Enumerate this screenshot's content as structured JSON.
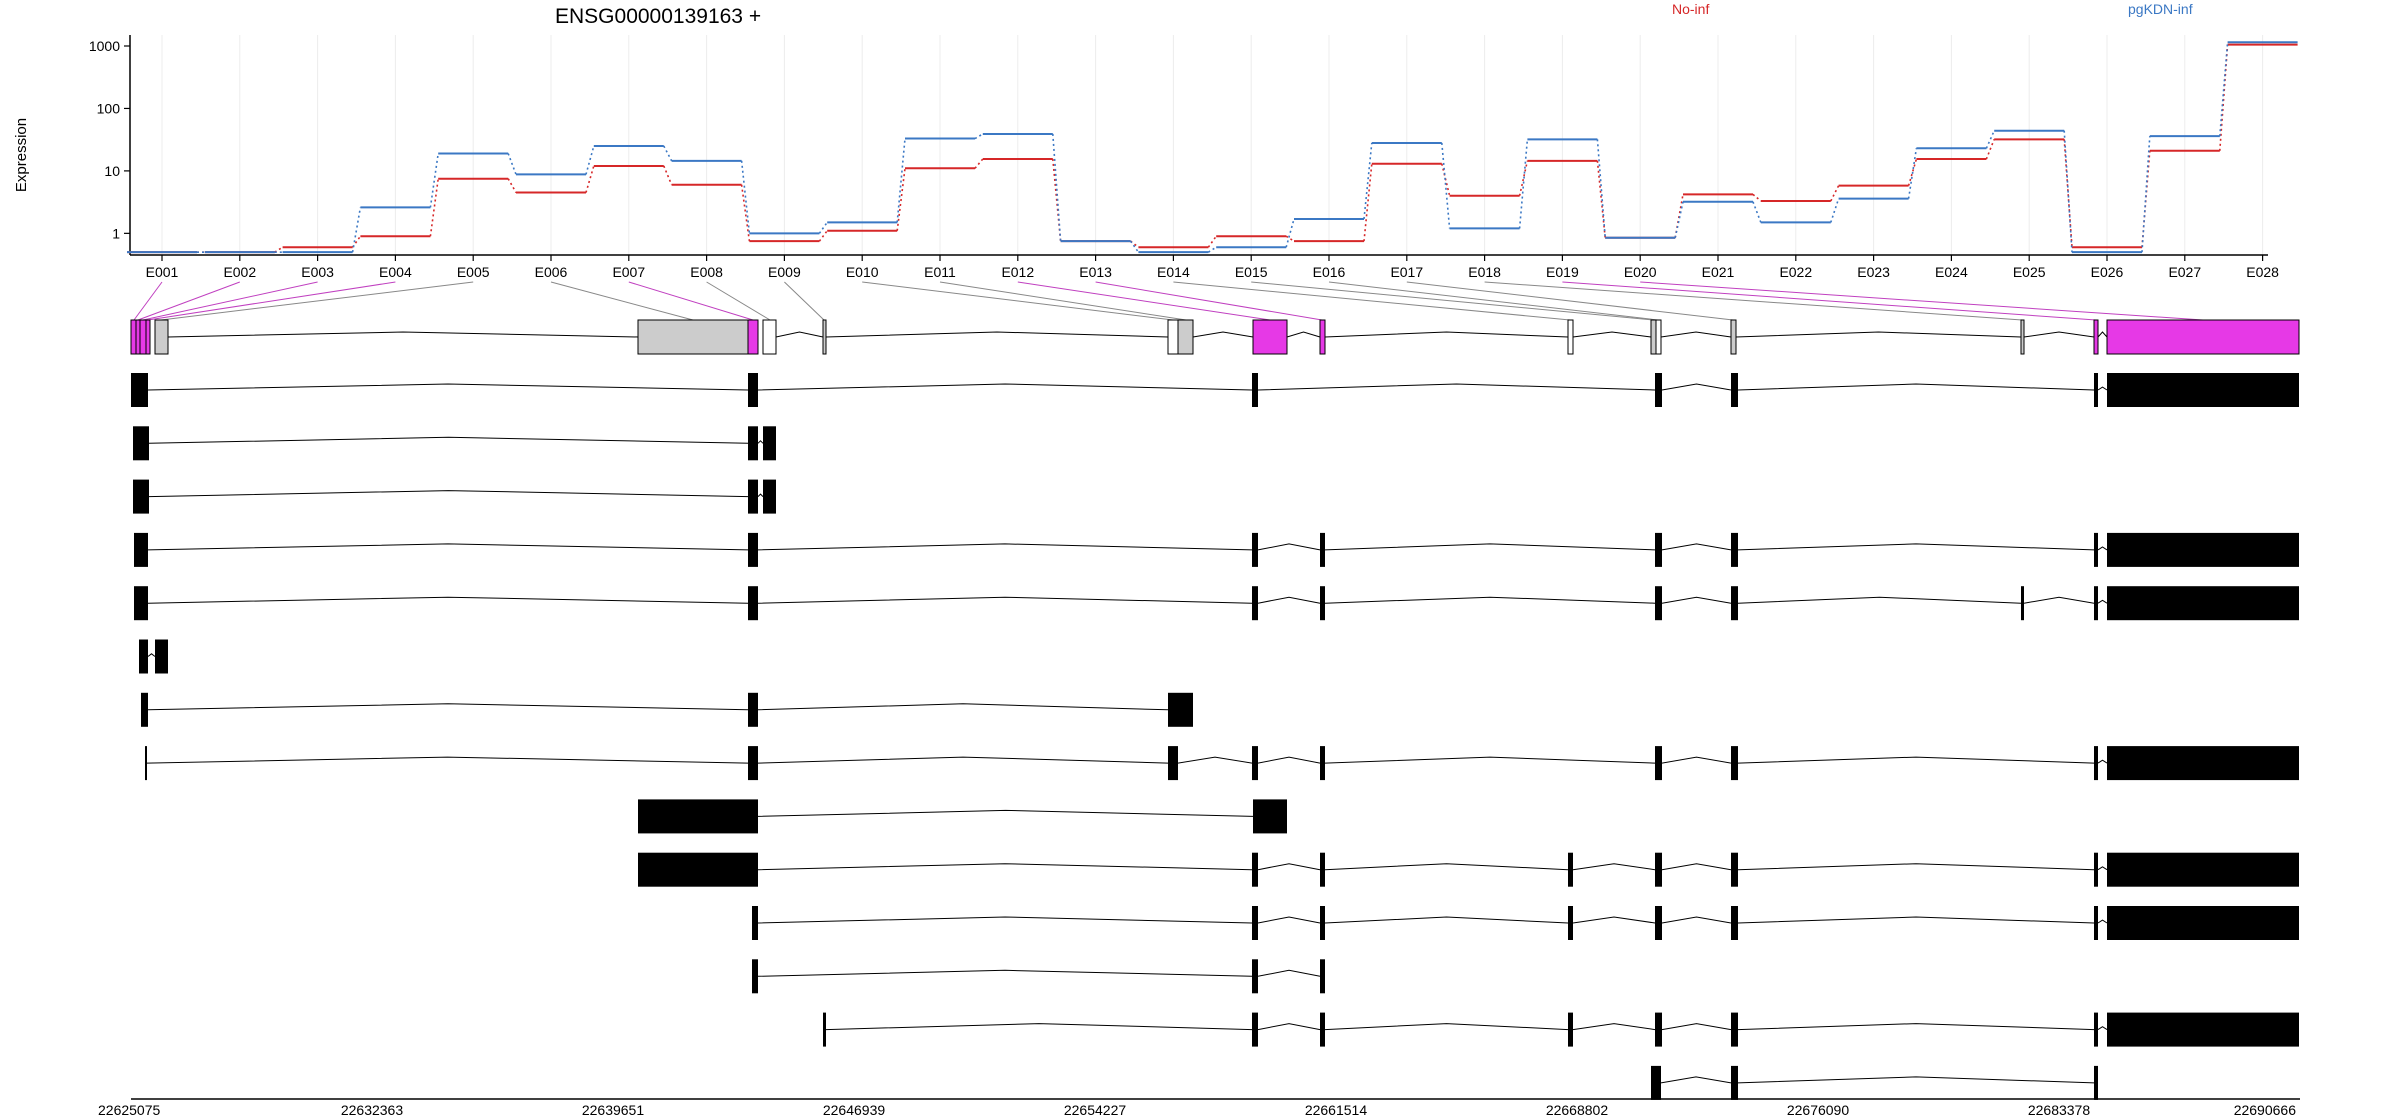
{
  "title": "ENSG00000139163 +",
  "chart_data": {
    "type": "line",
    "title": "ENSG00000139163 +",
    "ylabel": "Expression",
    "yscale": "log",
    "yticks": [
      1,
      10,
      100,
      1000
    ],
    "ylim": [
      0.45,
      1500
    ],
    "grid": "vertical",
    "legend_placement": "top",
    "exons": [
      "E001",
      "E002",
      "E003",
      "E004",
      "E005",
      "E006",
      "E007",
      "E008",
      "E009",
      "E010",
      "E011",
      "E012",
      "E013",
      "E014",
      "E015",
      "E016",
      "E017",
      "E018",
      "E019",
      "E020",
      "E021",
      "E022",
      "E023",
      "E024",
      "E025",
      "E026",
      "E027",
      "E028"
    ],
    "series": [
      {
        "name": "No-inf",
        "color": "#d62728",
        "values": [
          0.5,
          0.5,
          0.6,
          0.9,
          7.5,
          4.5,
          12,
          6,
          0.75,
          1.1,
          11,
          15.5,
          0.75,
          0.6,
          0.9,
          0.75,
          13,
          4,
          14.5,
          0.85,
          4.2,
          3.3,
          5.8,
          15.5,
          32,
          0.6,
          21,
          1050
        ]
      },
      {
        "name": "pgKDN-inf",
        "color": "#3b78c4",
        "values": [
          0.5,
          0.5,
          0.5,
          2.6,
          19,
          8.8,
          25,
          14.5,
          1,
          1.5,
          33,
          39,
          0.75,
          0.5,
          0.6,
          1.7,
          28,
          1.2,
          32,
          0.85,
          3.2,
          1.5,
          3.6,
          23,
          44,
          0.5,
          36,
          1150
        ]
      }
    ],
    "genome_axis": {
      "ticks": [
        22625075,
        22632363,
        22639651,
        22646939,
        22654227,
        22661514,
        22668802,
        22676090,
        22683378,
        22690666
      ],
      "range": [
        22625075,
        22690666
      ]
    }
  }
}
